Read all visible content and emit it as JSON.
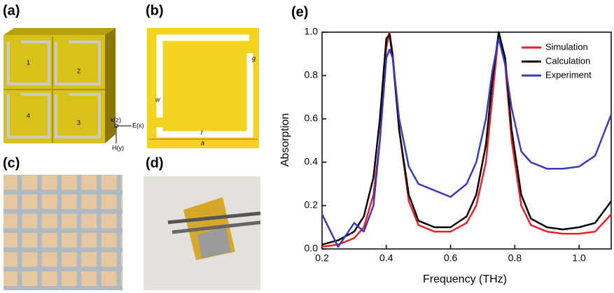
{
  "panels": {
    "labels": [
      "(a)",
      "(b)",
      "(c)",
      "(d)",
      "(e)"
    ],
    "a": {
      "cells": [
        "1",
        "2",
        "3",
        "4"
      ],
      "axes": [
        "k(z)",
        "E(x)",
        "H(y)"
      ]
    },
    "b": {
      "dims": [
        "g",
        "w",
        "l",
        "a"
      ]
    }
  },
  "chart_data": {
    "type": "line",
    "x_label": "Frequency (THz)",
    "y_label": "Absorption",
    "x": [
      0.2,
      0.25,
      0.3,
      0.33,
      0.36,
      0.38,
      0.4,
      0.41,
      0.42,
      0.44,
      0.47,
      0.5,
      0.55,
      0.6,
      0.65,
      0.68,
      0.71,
      0.73,
      0.75,
      0.77,
      0.79,
      0.82,
      0.85,
      0.9,
      0.95,
      1.0,
      1.05,
      1.1
    ],
    "series": [
      {
        "name": "Simulation",
        "color": "#e8202a",
        "values": [
          0.01,
          0.02,
          0.05,
          0.1,
          0.25,
          0.5,
          0.93,
          1.0,
          0.9,
          0.55,
          0.22,
          0.11,
          0.08,
          0.08,
          0.12,
          0.2,
          0.4,
          0.7,
          1.0,
          0.85,
          0.5,
          0.2,
          0.11,
          0.08,
          0.07,
          0.07,
          0.08,
          0.16
        ]
      },
      {
        "name": "Calculation",
        "color": "#000000",
        "values": [
          0.02,
          0.04,
          0.08,
          0.15,
          0.33,
          0.6,
          0.97,
          0.99,
          0.88,
          0.55,
          0.25,
          0.13,
          0.1,
          0.1,
          0.15,
          0.25,
          0.48,
          0.78,
          1.0,
          0.88,
          0.55,
          0.25,
          0.14,
          0.1,
          0.09,
          0.1,
          0.12,
          0.22
        ]
      },
      {
        "name": "Experiment",
        "color": "#3a3ab4",
        "values": [
          0.16,
          0.01,
          0.12,
          0.08,
          0.2,
          0.5,
          0.88,
          0.92,
          0.88,
          0.6,
          0.38,
          0.3,
          0.27,
          0.24,
          0.3,
          0.4,
          0.6,
          0.82,
          0.97,
          0.85,
          0.65,
          0.45,
          0.4,
          0.37,
          0.37,
          0.38,
          0.43,
          0.62
        ]
      }
    ],
    "xlim": [
      0.2,
      1.1
    ],
    "ylim": [
      0,
      1
    ],
    "xticks": [
      0.2,
      0.4,
      0.6,
      0.8,
      {
        "value": 1,
        "label": "1.0"
      }
    ],
    "yticks": [
      {
        "value": 0,
        "label": "0.0"
      },
      0.2,
      0.4,
      0.6,
      0.8,
      {
        "value": 1,
        "label": "1.0"
      }
    ],
    "legend": "upper right"
  }
}
